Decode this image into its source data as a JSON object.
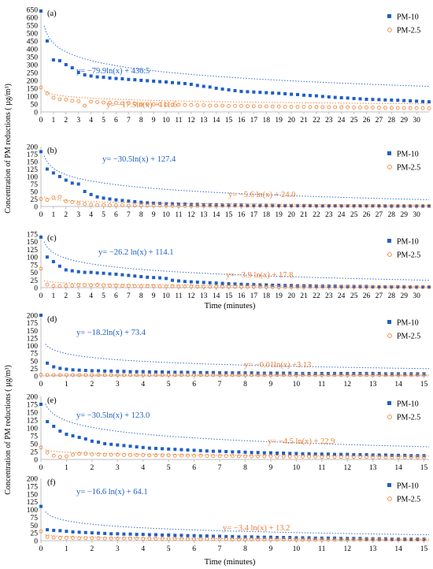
{
  "colors": {
    "pm10": "#1f5fc7",
    "pm25": "#ed7d31",
    "axis": "#bfbfbf",
    "text": "#000000"
  },
  "groups": [
    {
      "ylabel": "Concentration of PM reductions ( µg/m³)",
      "xlabel": "Time (minutes)"
    },
    {
      "ylabel": "Concentration of PM reductions ( µg/m³)",
      "xlabel": "Time (minutes)"
    }
  ],
  "chart_data": [
    {
      "type": "scatter",
      "label": "(a)",
      "xlim": [
        0,
        31
      ],
      "ylim": [
        0,
        650
      ],
      "yticks": [
        0,
        50,
        100,
        150,
        200,
        250,
        300,
        350,
        400,
        450,
        500,
        550,
        600,
        650
      ],
      "xticks": [
        0,
        1,
        2,
        3,
        4,
        5,
        6,
        7,
        8,
        9,
        10,
        11,
        12,
        13,
        14,
        15,
        16,
        17,
        18,
        19,
        20,
        21,
        22,
        23,
        24,
        25,
        26,
        27,
        28,
        29,
        30
      ],
      "legend": [
        "PM-10",
        "PM-2.5"
      ],
      "legend_position": "top-right",
      "series": [
        {
          "name": "PM-10",
          "marker": "square",
          "x_step": 0.5,
          "trend": {
            "a": -79.9,
            "b": 436.5,
            "label": "y= −79.9ln(x) + 436.5"
          },
          "values": [
            640,
            450,
            330,
            325,
            300,
            280,
            250,
            235,
            228,
            222,
            220,
            215,
            212,
            210,
            206,
            204,
            200,
            198,
            195,
            192,
            190,
            186,
            183,
            180,
            175,
            168,
            162,
            158,
            150,
            145,
            140,
            135,
            130,
            128,
            126,
            124,
            122,
            120,
            118,
            115,
            112,
            110,
            106,
            104,
            102,
            98,
            95,
            92,
            90,
            88,
            85,
            83,
            80,
            79,
            78,
            76,
            75,
            74,
            72,
            70,
            68,
            66,
            64,
            62
          ]
        },
        {
          "name": "PM-2.5",
          "marker": "circle",
          "x_step": 0.5,
          "trend": {
            "a": -17.5,
            "b": 111.6,
            "label": "y= −17.5ln(x) +111.6"
          },
          "values": [
            155,
            118,
            90,
            80,
            78,
            70,
            68,
            40,
            65,
            62,
            60,
            58,
            58,
            55,
            55,
            52,
            50,
            50,
            48,
            48,
            46,
            46,
            45,
            44,
            44,
            42,
            42,
            40,
            40,
            40,
            38,
            38,
            38,
            36,
            36,
            35,
            35,
            34,
            34,
            33,
            33,
            32,
            32,
            31,
            31,
            30,
            30,
            30,
            29,
            29,
            28,
            28,
            28,
            27,
            27,
            26,
            26,
            25,
            25,
            24,
            24,
            24,
            23,
            23
          ]
        }
      ]
    },
    {
      "type": "scatter",
      "label": "(b)",
      "xlim": [
        0,
        31
      ],
      "ylim": [
        0,
        200
      ],
      "yticks": [
        0,
        25,
        50,
        75,
        100,
        125,
        150,
        175,
        200
      ],
      "xticks": [
        0,
        1,
        2,
        3,
        4,
        5,
        6,
        7,
        8,
        9,
        10,
        11,
        12,
        13,
        14,
        15,
        16,
        17,
        18,
        19,
        20,
        21,
        22,
        23,
        24,
        25,
        26,
        27,
        28,
        29,
        30
      ],
      "legend": [
        "PM-10",
        "PM-2.5"
      ],
      "legend_position": "top-right",
      "series": [
        {
          "name": "PM-10",
          "marker": "square",
          "x_step": 0.5,
          "trend": {
            "a": -30.5,
            "b": 127.4,
            "label": "y= −30.5ln(x) + 127.4"
          },
          "values": [
            183,
            125,
            112,
            100,
            88,
            78,
            75,
            50,
            40,
            32,
            28,
            25,
            22,
            20,
            18,
            16,
            14,
            12,
            11,
            10,
            9,
            9,
            8,
            8,
            7,
            7,
            6,
            6,
            6,
            5,
            5,
            5,
            5,
            4,
            4,
            4,
            4,
            4,
            3,
            3,
            3,
            3,
            3,
            3,
            2,
            2,
            2,
            2,
            2,
            2,
            2,
            2,
            2,
            2,
            2,
            1,
            1,
            1,
            1,
            1,
            1,
            1,
            1,
            1
          ]
        },
        {
          "name": "PM-2.5",
          "marker": "circle",
          "x_step": 0.5,
          "trend": {
            "a": -5.6,
            "b": 24.0,
            "label": "y= −5.6 ln(x) + 24.0"
          },
          "values": [
            25,
            22,
            30,
            32,
            18,
            15,
            10,
            8,
            6,
            5,
            5,
            4,
            4,
            4,
            3,
            3,
            3,
            3,
            3,
            3,
            3,
            2,
            2,
            2,
            2,
            2,
            2,
            2,
            2,
            2,
            2,
            2,
            2,
            2,
            2,
            2,
            2,
            2,
            2,
            2,
            2,
            2,
            2,
            2,
            2,
            2,
            2,
            2,
            2,
            2,
            2,
            2,
            2,
            2,
            2,
            2,
            2,
            2,
            2,
            2,
            2,
            2,
            2,
            2
          ]
        }
      ]
    },
    {
      "type": "scatter",
      "label": "(c)",
      "xlim": [
        0,
        31
      ],
      "ylim": [
        0,
        175
      ],
      "yticks": [
        0,
        25,
        50,
        75,
        100,
        125,
        150,
        175
      ],
      "xticks": [
        0,
        1,
        2,
        3,
        4,
        5,
        6,
        7,
        8,
        9,
        10,
        11,
        12,
        13,
        14,
        15,
        16,
        17,
        18,
        19,
        20,
        21,
        22,
        23,
        24,
        25,
        26,
        27,
        28,
        29,
        30
      ],
      "legend": [
        "PM-10",
        "PM-2.5"
      ],
      "legend_position": "top-right",
      "series": [
        {
          "name": "PM-10",
          "marker": "square",
          "x_step": 0.5,
          "trend": {
            "a": -26.2,
            "b": 114.1,
            "label": "y= −26.2 ln(x) + 114.1"
          },
          "values": [
            165,
            100,
            85,
            70,
            58,
            55,
            52,
            50,
            50,
            48,
            47,
            45,
            44,
            42,
            40,
            38,
            36,
            34,
            33,
            32,
            30,
            24,
            22,
            20,
            19,
            18,
            17,
            16,
            15,
            14,
            13,
            12,
            11,
            10,
            10,
            9,
            9,
            8,
            8,
            7,
            7,
            6,
            6,
            6,
            5,
            5,
            5,
            5,
            4,
            4,
            4,
            4,
            4,
            3,
            3,
            3,
            3,
            3,
            3,
            2,
            2,
            2,
            2,
            2
          ]
        },
        {
          "name": "PM-2.5",
          "marker": "circle",
          "x_step": 0.5,
          "trend": {
            "a": -3.9,
            "b": 17.8,
            "label": "y= −3.9 ln(x) + 17.8"
          },
          "values": [
            62,
            10,
            6,
            5,
            6,
            7,
            8,
            8,
            8,
            9,
            8,
            7,
            7,
            6,
            6,
            5,
            5,
            5,
            5,
            4,
            4,
            4,
            4,
            4,
            4,
            3,
            3,
            3,
            3,
            3,
            3,
            3,
            3,
            3,
            3,
            3,
            2,
            2,
            2,
            2,
            2,
            2,
            2,
            2,
            2,
            2,
            2,
            2,
            2,
            2,
            2,
            2,
            2,
            2,
            2,
            2,
            2,
            2,
            2,
            2,
            2,
            2,
            2,
            2
          ]
        }
      ]
    },
    {
      "type": "scatter",
      "label": "(d)",
      "xlim": [
        0,
        15.2
      ],
      "ylim": [
        0,
        200
      ],
      "yticks": [
        0,
        25,
        50,
        75,
        100,
        125,
        150,
        175,
        200
      ],
      "xticks": [
        0,
        1,
        2,
        3,
        4,
        5,
        6,
        7,
        8,
        9,
        10,
        11,
        12,
        13,
        14,
        15
      ],
      "legend": [
        "PM-10",
        "PM-2.5"
      ],
      "legend_position": "top-right",
      "series": [
        {
          "name": "PM-10",
          "marker": "square",
          "x_step": 0.25,
          "trend": {
            "a": -18.2,
            "b": 73.4,
            "label": "y= −18.2ln(x) + 73.4"
          },
          "values": [
            200,
            42,
            30,
            25,
            22,
            20,
            19,
            18,
            17,
            17,
            16,
            16,
            15,
            15,
            14,
            14,
            14,
            13,
            13,
            13,
            12,
            12,
            12,
            12,
            11,
            11,
            11,
            11,
            10,
            10,
            10,
            10,
            10,
            10,
            9,
            9,
            9,
            9,
            9,
            9,
            8,
            8,
            8,
            8,
            8,
            8,
            8,
            8,
            8,
            8,
            8,
            8,
            8,
            8,
            7,
            7,
            7,
            7,
            7,
            7,
            7
          ]
        },
        {
          "name": "PM-2.5",
          "marker": "circle",
          "x_step": 0.25,
          "trend": {
            "a": -0.01,
            "b": 3.13,
            "label": "y= −0.01ln(x) +3.13"
          },
          "values": [
            4,
            3,
            3,
            3,
            3,
            3,
            3,
            3,
            3,
            3,
            3,
            3,
            3,
            3,
            3,
            3,
            3,
            3,
            3,
            3,
            3,
            3,
            3,
            3,
            3,
            3,
            3,
            3,
            3,
            3,
            3,
            3,
            3,
            3,
            3,
            3,
            3,
            3,
            3,
            3,
            3,
            3,
            3,
            3,
            3,
            3,
            3,
            3,
            3,
            3,
            3,
            3,
            3,
            3,
            3,
            3,
            3,
            3,
            3,
            3,
            3
          ]
        }
      ]
    },
    {
      "type": "scatter",
      "label": "(e)",
      "xlim": [
        0,
        15.2
      ],
      "ylim": [
        0,
        200
      ],
      "yticks": [
        0,
        25,
        50,
        75,
        100,
        125,
        150,
        175,
        200
      ],
      "xticks": [
        0,
        1,
        2,
        3,
        4,
        5,
        6,
        7,
        8,
        9,
        10,
        11,
        12,
        13,
        14,
        15
      ],
      "legend": [
        "PM-10",
        "PM-2.5"
      ],
      "legend_position": "top-right",
      "series": [
        {
          "name": "PM-10",
          "marker": "square",
          "x_step": 0.25,
          "trend": {
            "a": -30.5,
            "b": 123.0,
            "label": "y= −30.5ln(x) + 123.0"
          },
          "values": [
            175,
            120,
            105,
            90,
            80,
            75,
            70,
            65,
            58,
            55,
            50,
            48,
            46,
            44,
            42,
            40,
            38,
            36,
            35,
            34,
            33,
            32,
            31,
            30,
            29,
            28,
            27,
            26,
            26,
            25,
            24,
            24,
            23,
            22,
            22,
            21,
            21,
            20,
            20,
            19,
            19,
            18,
            18,
            17,
            17,
            17,
            16,
            16,
            16,
            15,
            15,
            15,
            14,
            14,
            14,
            13,
            13,
            13,
            12,
            12,
            12
          ]
        },
        {
          "name": "PM-2.5",
          "marker": "circle",
          "x_step": 0.25,
          "trend": {
            "a": -4.5,
            "b": 22.9,
            "label": "y= −4.5 ln(x) + 22.9"
          },
          "values": [
            38,
            22,
            12,
            8,
            10,
            15,
            18,
            18,
            16,
            16,
            15,
            15,
            15,
            14,
            14,
            14,
            14,
            13,
            13,
            13,
            13,
            12,
            12,
            12,
            12,
            12,
            11,
            11,
            11,
            11,
            11,
            10,
            10,
            10,
            10,
            10,
            10,
            9,
            9,
            9,
            9,
            9,
            9,
            9,
            8,
            8,
            8,
            8,
            8,
            8,
            8,
            8,
            7,
            7,
            7,
            7,
            7,
            7,
            7,
            7,
            7
          ]
        }
      ]
    },
    {
      "type": "scatter",
      "label": "(f)",
      "xlim": [
        0,
        15.2
      ],
      "ylim": [
        0,
        200
      ],
      "yticks": [
        0,
        25,
        50,
        75,
        100,
        125,
        150,
        175,
        200
      ],
      "xticks": [
        0,
        1,
        2,
        3,
        4,
        5,
        6,
        7,
        8,
        9,
        10,
        11,
        12,
        13,
        14,
        15
      ],
      "legend": [
        "PM-10",
        "PM-2.5"
      ],
      "legend_position": "top-right",
      "series": [
        {
          "name": "PM-10",
          "marker": "square",
          "x_step": 0.25,
          "trend": {
            "a": -16.6,
            "b": 64.1,
            "label": "y= −16.6 ln(x) + 64.1"
          },
          "values": [
            110,
            35,
            33,
            32,
            30,
            28,
            27,
            26,
            25,
            24,
            23,
            22,
            22,
            21,
            21,
            20,
            20,
            19,
            19,
            18,
            18,
            17,
            17,
            16,
            16,
            15,
            15,
            14,
            14,
            13,
            13,
            12,
            12,
            12,
            11,
            11,
            11,
            10,
            10,
            10,
            9,
            9,
            9,
            8,
            8,
            8,
            8,
            7,
            7,
            7,
            7,
            6,
            6,
            6,
            6,
            5,
            5,
            5,
            5,
            5,
            5
          ]
        },
        {
          "name": "PM-2.5",
          "marker": "circle",
          "x_step": 0.25,
          "trend": {
            "a": -3.4,
            "b": 13.2,
            "label": "y= −3.4 ln(x) + 13.2"
          },
          "values": [
            30,
            12,
            10,
            9,
            9,
            9,
            8,
            8,
            8,
            8,
            7,
            7,
            7,
            7,
            7,
            7,
            6,
            6,
            6,
            6,
            6,
            6,
            5,
            5,
            5,
            5,
            5,
            5,
            5,
            5,
            4,
            4,
            4,
            4,
            4,
            4,
            4,
            4,
            4,
            4,
            3,
            3,
            3,
            3,
            3,
            3,
            3,
            3,
            3,
            3,
            3,
            3,
            3,
            3,
            3,
            3,
            3,
            3,
            3,
            3,
            3
          ]
        }
      ]
    }
  ]
}
